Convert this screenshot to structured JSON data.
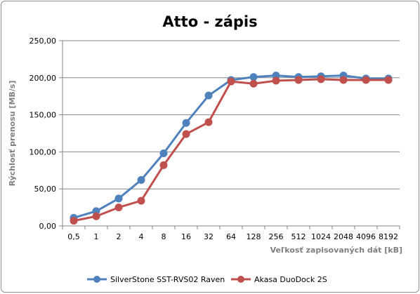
{
  "chart_data": {
    "type": "line",
    "title": "Atto - zápis",
    "xlabel": "Veľkosť zapisovaných  dát [kB]",
    "ylabel": "Rýchlosť prenosu  [MB/s]",
    "categories": [
      "0,5",
      "1",
      "2",
      "4",
      "8",
      "16",
      "32",
      "64",
      "128",
      "256",
      "512",
      "1024",
      "2048",
      "4096",
      "8192"
    ],
    "ylim": [
      0,
      250
    ],
    "yticks": [
      "0,00",
      "50,00",
      "100,00",
      "150,00",
      "200,00",
      "250,00"
    ],
    "grid": true,
    "legend_position": "bottom",
    "series": [
      {
        "name": "SilverStone SST-RVS02 Raven",
        "color": "#4f81bd",
        "values": [
          11,
          20,
          37,
          62,
          98,
          139,
          176,
          197,
          201,
          203,
          201,
          202,
          203,
          199,
          199
        ]
      },
      {
        "name": "Akasa DuoDock 2S",
        "color": "#c0504d",
        "values": [
          7,
          13,
          25,
          34,
          82,
          124,
          140,
          195,
          192,
          196,
          197,
          198,
          197,
          197,
          197
        ]
      }
    ]
  }
}
